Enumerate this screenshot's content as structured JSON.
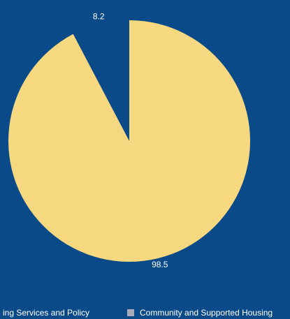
{
  "chart_data": {
    "type": "pie",
    "categories": [
      "ing Services and Policy",
      "Community and Supported Housing"
    ],
    "values": [
      8.2,
      98.5
    ],
    "colors": [
      "#0b4a89",
      "#f6d880"
    ],
    "legend_colors": [
      "#a8a9b9",
      "#a8a9b9"
    ]
  }
}
